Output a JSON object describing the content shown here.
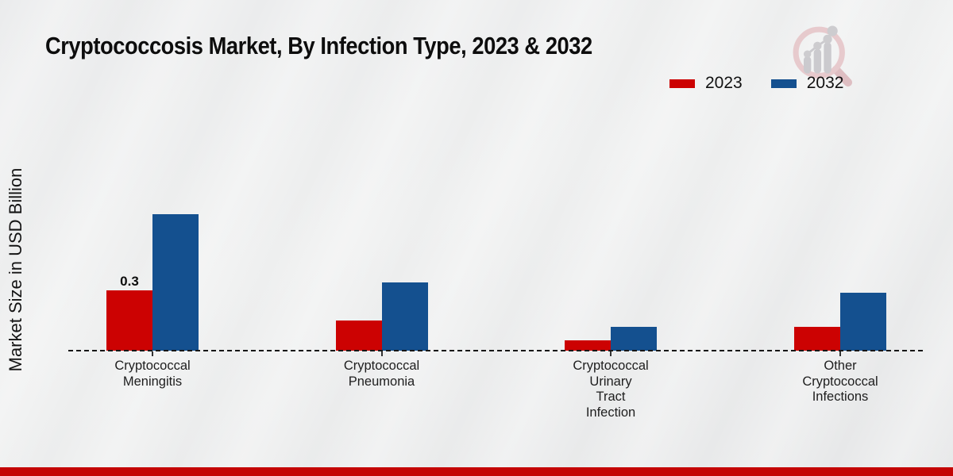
{
  "header": {
    "title": "Cryptococcosis Market, By Infection Type, 2023 & 2032"
  },
  "legend": {
    "items": [
      {
        "label": "2023",
        "color": "#cc0202"
      },
      {
        "label": "2032",
        "color": "#14508f"
      }
    ]
  },
  "footer": {
    "accent_color": "#c40404"
  },
  "chart_data": {
    "type": "bar",
    "title": "Cryptococcosis Market, By Infection Type, 2023 & 2032",
    "xlabel": "",
    "ylabel": "Market Size in USD Billion",
    "unit": "USD Billion",
    "categories": [
      "Cryptococcal Meningitis",
      "Cryptococcal Pneumonia",
      "Cryptococcal Urinary Tract Infection",
      "Other Cryptococcal Infections"
    ],
    "category_label_lines": [
      [
        "Cryptococcal",
        "Meningitis"
      ],
      [
        "Cryptococcal",
        "Pneumonia"
      ],
      [
        "Cryptococcal",
        "Urinary",
        "Tract",
        "Infection"
      ],
      [
        "Other",
        "Cryptococcal",
        "Infections"
      ]
    ],
    "series": [
      {
        "name": "2023",
        "color": "#cc0202",
        "values": [
          0.3,
          0.15,
          0.05,
          0.12
        ]
      },
      {
        "name": "2032",
        "color": "#14508f",
        "values": [
          0.68,
          0.34,
          0.12,
          0.29
        ]
      }
    ],
    "value_labels": [
      {
        "series": "2023",
        "category_index": 0,
        "text": "0.3"
      }
    ],
    "ylim": [
      0,
      0.75
    ],
    "grid": false,
    "legend_position": "top-right",
    "x_axis_line_style": "dashed"
  }
}
